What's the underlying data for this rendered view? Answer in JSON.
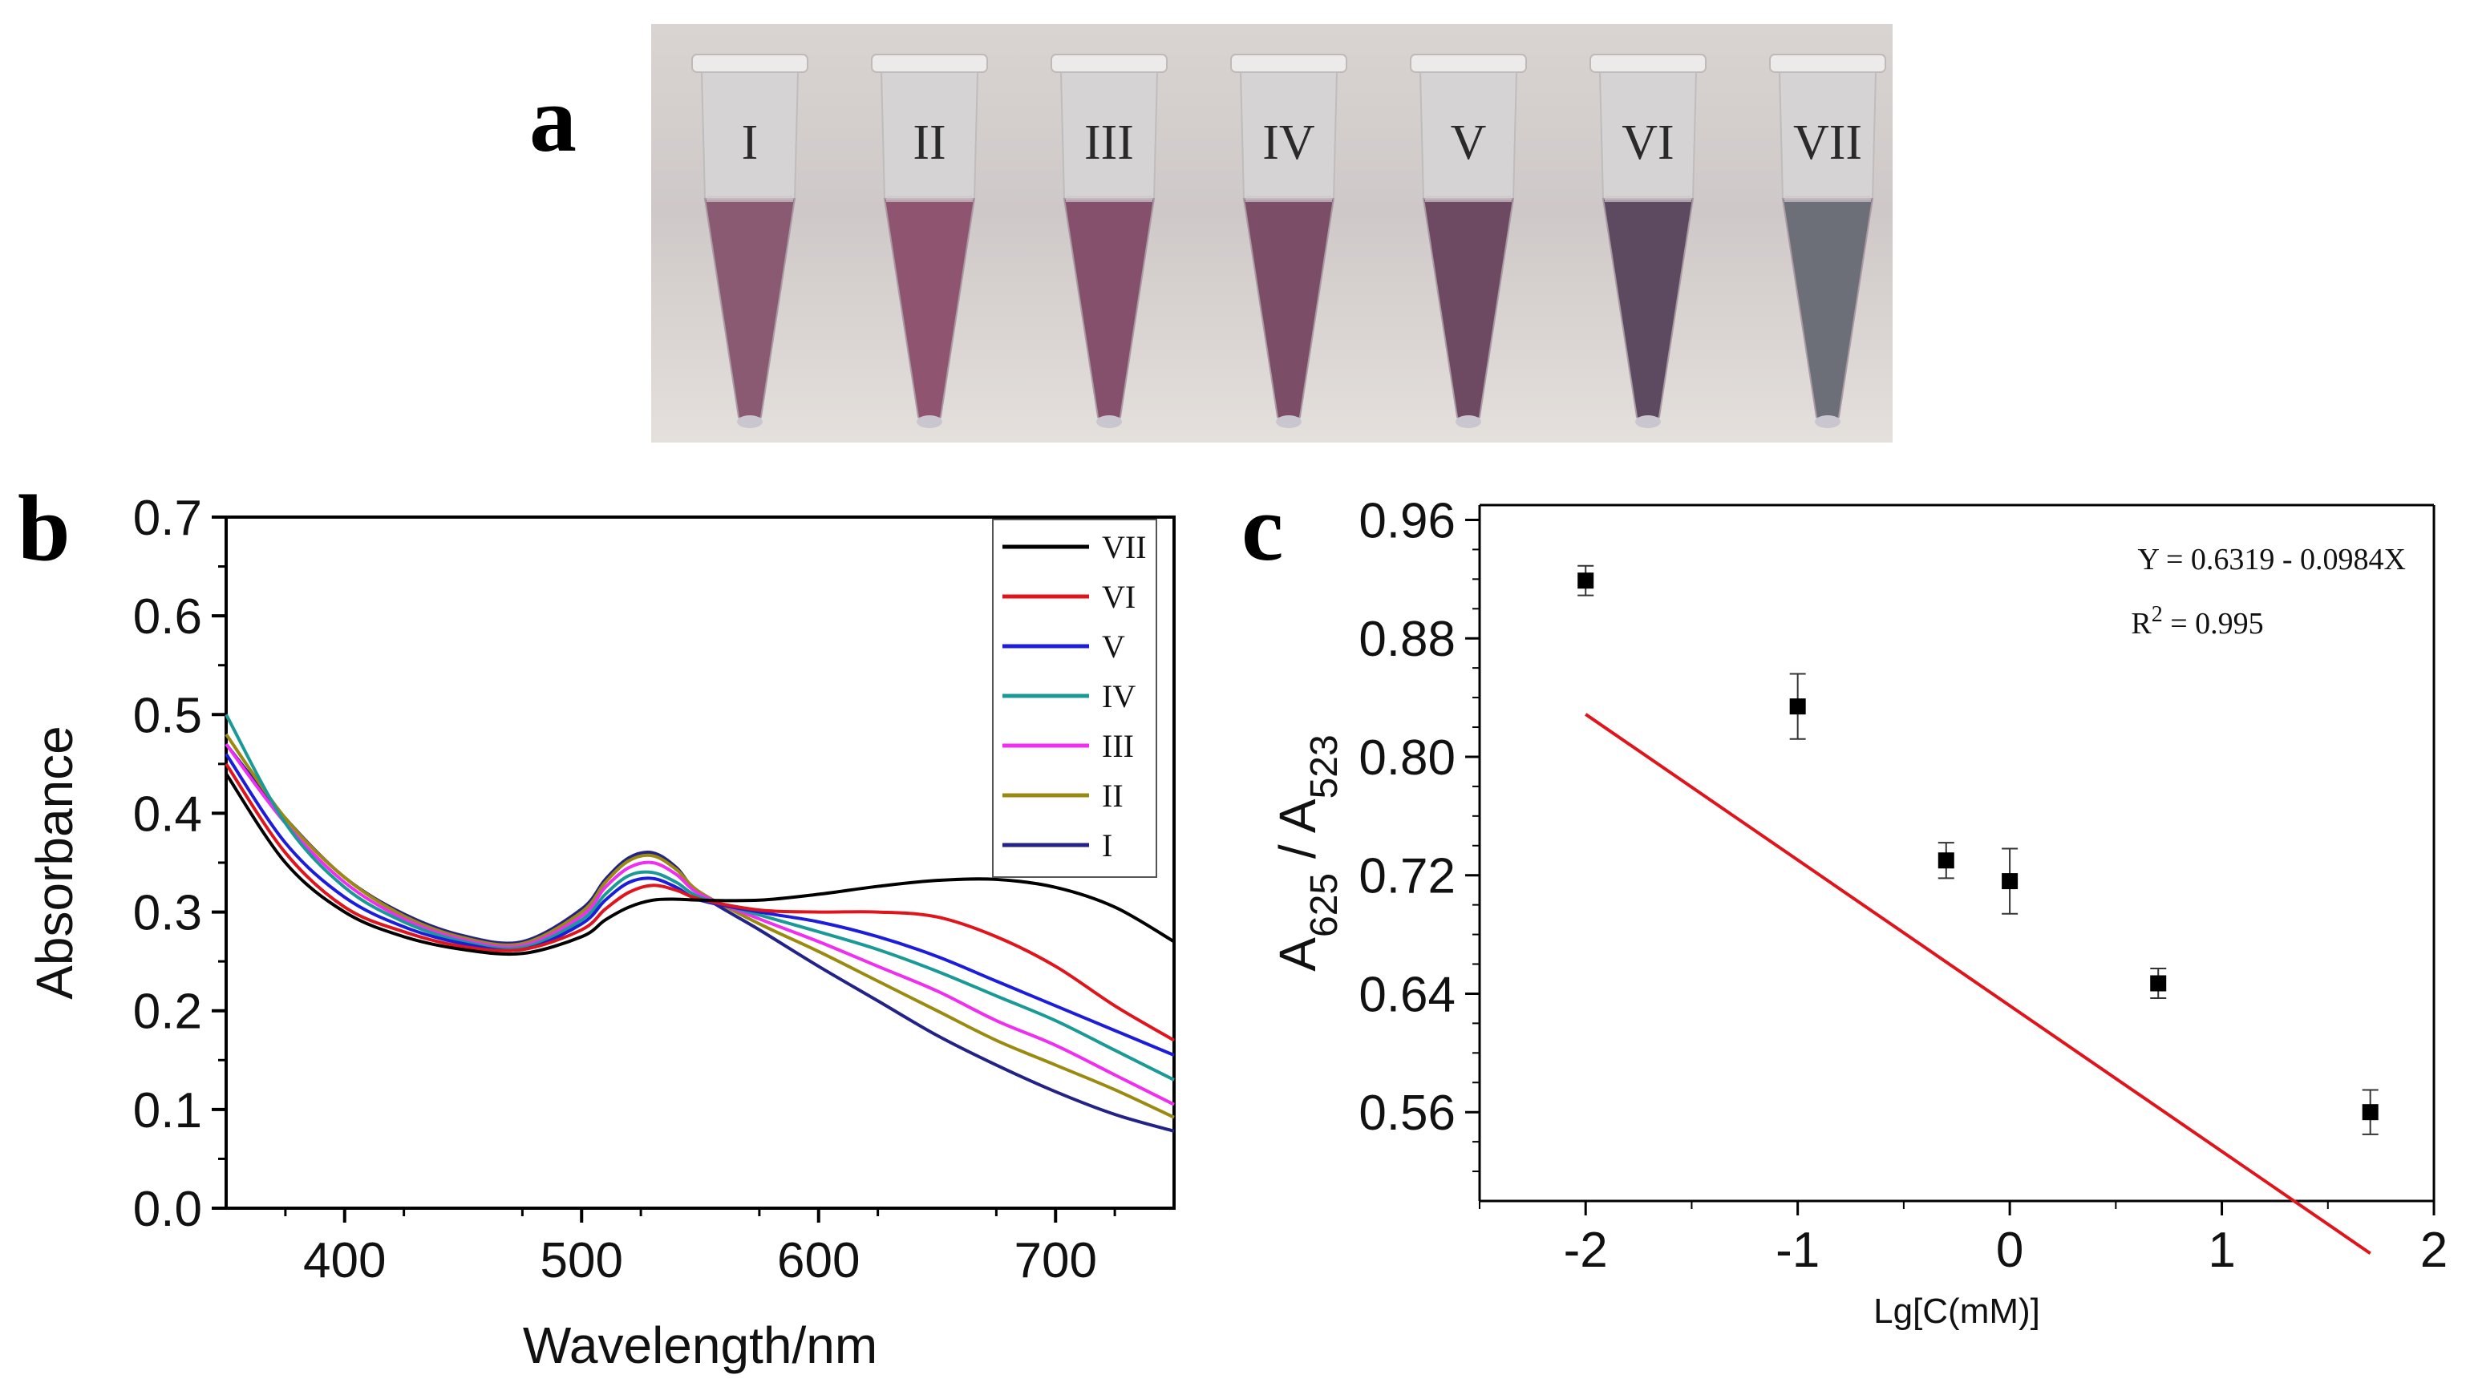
{
  "panel_labels": {
    "a": "a",
    "b": "b",
    "c": "c"
  },
  "photo": {
    "tube_labels": [
      "I",
      "II",
      "III",
      "IV",
      "V",
      "VI",
      "VII"
    ],
    "liquid_colors": [
      "#8a5a72",
      "#8f5470",
      "#85506b",
      "#7c4d66",
      "#6e4a62",
      "#5d4a60",
      "#6c6f78"
    ]
  },
  "chart_data": [
    {
      "id": "b",
      "type": "line",
      "title": "",
      "xlabel": "Wavelength/nm",
      "ylabel": "Absorbance",
      "xlim": [
        350,
        750
      ],
      "ylim": [
        0.0,
        0.7
      ],
      "xticks": [
        "400",
        "500",
        "600",
        "700"
      ],
      "xtick_values": [
        400,
        500,
        600,
        700
      ],
      "yticks": [
        "0.0",
        "0.1",
        "0.2",
        "0.3",
        "0.4",
        "0.5",
        "0.6",
        "0.7"
      ],
      "ytick_values": [
        0.0,
        0.1,
        0.2,
        0.3,
        0.4,
        0.5,
        0.6,
        0.7
      ],
      "legend_position": "top-right",
      "x": [
        350,
        375,
        400,
        425,
        450,
        475,
        500,
        510,
        520,
        530,
        540,
        550,
        575,
        600,
        625,
        650,
        675,
        700,
        725,
        750
      ],
      "series": [
        {
          "name": "VII",
          "color": "#000000",
          "values": [
            0.44,
            0.35,
            0.3,
            0.275,
            0.262,
            0.258,
            0.275,
            0.292,
            0.305,
            0.312,
            0.313,
            0.312,
            0.312,
            0.318,
            0.326,
            0.332,
            0.333,
            0.325,
            0.305,
            0.27
          ]
        },
        {
          "name": "VI",
          "color": "#e0151c",
          "values": [
            0.45,
            0.36,
            0.305,
            0.28,
            0.265,
            0.262,
            0.282,
            0.303,
            0.32,
            0.327,
            0.322,
            0.313,
            0.302,
            0.3,
            0.3,
            0.295,
            0.275,
            0.245,
            0.205,
            0.17
          ]
        },
        {
          "name": "V",
          "color": "#1c1cdc",
          "values": [
            0.46,
            0.37,
            0.315,
            0.285,
            0.268,
            0.262,
            0.288,
            0.312,
            0.33,
            0.334,
            0.325,
            0.312,
            0.3,
            0.29,
            0.275,
            0.255,
            0.23,
            0.205,
            0.18,
            0.155
          ]
        },
        {
          "name": "IV",
          "color": "#1a9a96",
          "values": [
            0.5,
            0.39,
            0.325,
            0.29,
            0.27,
            0.264,
            0.292,
            0.318,
            0.337,
            0.34,
            0.33,
            0.315,
            0.297,
            0.28,
            0.262,
            0.24,
            0.215,
            0.19,
            0.16,
            0.13
          ]
        },
        {
          "name": "III",
          "color": "#ee2ef0",
          "values": [
            0.47,
            0.39,
            0.33,
            0.293,
            0.272,
            0.266,
            0.296,
            0.325,
            0.345,
            0.35,
            0.338,
            0.318,
            0.293,
            0.27,
            0.245,
            0.22,
            0.19,
            0.165,
            0.135,
            0.105
          ]
        },
        {
          "name": "II",
          "color": "#9a8a10",
          "values": [
            0.48,
            0.395,
            0.335,
            0.296,
            0.274,
            0.268,
            0.3,
            0.33,
            0.352,
            0.357,
            0.343,
            0.32,
            0.288,
            0.26,
            0.23,
            0.2,
            0.17,
            0.145,
            0.12,
            0.092
          ]
        },
        {
          "name": "I",
          "color": "#222288",
          "values": [
            0.47,
            0.395,
            0.335,
            0.298,
            0.276,
            0.27,
            0.303,
            0.333,
            0.355,
            0.36,
            0.345,
            0.318,
            0.282,
            0.245,
            0.21,
            0.175,
            0.145,
            0.118,
            0.095,
            0.078
          ]
        }
      ]
    },
    {
      "id": "c",
      "type": "scatter",
      "title": "",
      "xlabel": "Lg[C(mM)]",
      "ylabel_main": "A",
      "ylabel_sub1": "625",
      "ylabel_sep": " / A",
      "ylabel_sub2": "523",
      "xlim": [
        -2.5,
        2.0
      ],
      "ylim": [
        0.5,
        0.97
      ],
      "xticks": [
        "-2",
        "-1",
        "0",
        "1",
        "2"
      ],
      "xtick_values": [
        -2,
        -1,
        0,
        1,
        2
      ],
      "yticks": [
        "0.56",
        "0.64",
        "0.72",
        "0.80",
        "0.88",
        "0.96"
      ],
      "ytick_values": [
        0.56,
        0.64,
        0.72,
        0.8,
        0.88,
        0.96
      ],
      "points": [
        {
          "x": -2.0,
          "y": 0.919,
          "err": 0.01
        },
        {
          "x": -1.0,
          "y": 0.834,
          "err": 0.022
        },
        {
          "x": -0.3,
          "y": 0.73,
          "err": 0.012
        },
        {
          "x": 0.0,
          "y": 0.716,
          "err": 0.022
        },
        {
          "x": 0.7,
          "y": 0.647,
          "err": 0.01
        },
        {
          "x": 1.7,
          "y": 0.56,
          "err": 0.015
        }
      ],
      "fit": {
        "intercept": 0.6319,
        "slope": -0.0984,
        "x_range": [
          -2.0,
          1.7
        ],
        "color": "#e0151c"
      },
      "equation_text": "Y = 0.6319 - 0.0984X",
      "r2_prefix": "R",
      "r2_sup": "2",
      "r2_suffix": " = 0.995"
    }
  ]
}
